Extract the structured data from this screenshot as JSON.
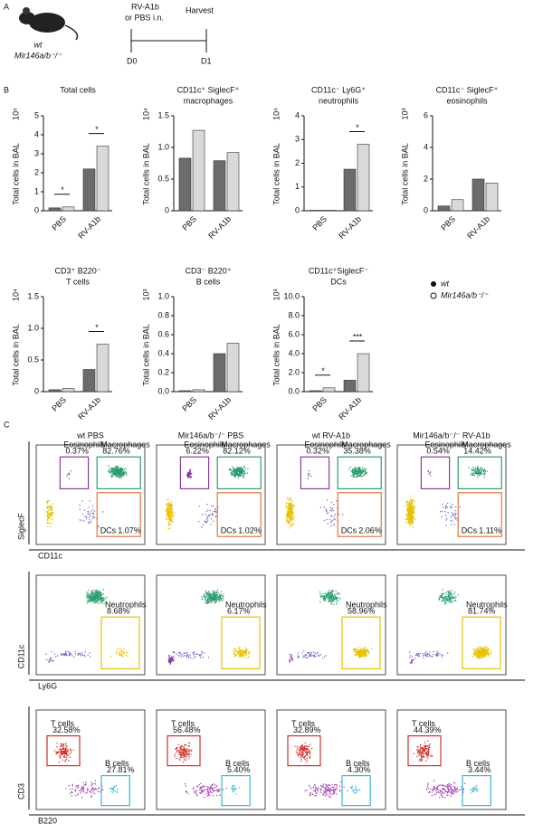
{
  "panel_labels": [
    "A",
    "B",
    "C"
  ],
  "design": {
    "strains": [
      "wt",
      "Mir146a/b⁻/⁻"
    ],
    "treatment": [
      "RV-A1b",
      "or PBS i.n."
    ],
    "harvest": "Harvest",
    "days": [
      "D0",
      "D1"
    ]
  },
  "chart_data": [
    {
      "type": "bar",
      "title": [
        "Total cells"
      ],
      "ylabel": "Total cells in BAL",
      "unit": "10⁵",
      "categories": [
        "PBS",
        "RV-A1b"
      ],
      "series": [
        {
          "name": "wt",
          "color": "#6b6b6b",
          "values": [
            0.15,
            2.2
          ]
        },
        {
          "name": "Mir146a/b⁻/⁻",
          "color": "#d9d9d9",
          "values": [
            0.2,
            3.4
          ]
        }
      ],
      "significance": [
        "*",
        "*"
      ],
      "ylim": [
        0,
        5
      ],
      "yticks": [
        0,
        1,
        2,
        3,
        4,
        5
      ]
    },
    {
      "type": "bar",
      "title": [
        "CD11c⁺ SiglecF⁺",
        "macrophages"
      ],
      "ylabel": "Total cells in BAL",
      "unit": "10⁴",
      "categories": [
        "PBS",
        "RV-A1b"
      ],
      "series": [
        {
          "name": "wt",
          "color": "#6b6b6b",
          "values": [
            0.83,
            0.79
          ]
        },
        {
          "name": "Mir146a/b⁻/⁻",
          "color": "#d9d9d9",
          "values": [
            1.27,
            0.92
          ]
        }
      ],
      "significance": [
        null,
        null
      ],
      "ylim": [
        0,
        1.5
      ],
      "yticks": [
        0,
        0.5,
        {
          "value": 1,
          "label": "1.0"
        },
        1.5
      ]
    },
    {
      "type": "bar",
      "title": [
        "CD11c⁻ Ly6G⁺",
        "neutrophils"
      ],
      "ylabel": "Total cells in BAL",
      "unit": "10⁵",
      "categories": [
        "PBS",
        "RV-A1b"
      ],
      "series": [
        {
          "name": "wt",
          "color": "#6b6b6b",
          "values": [
            0.02,
            1.75
          ]
        },
        {
          "name": "Mir146a/b⁻/⁻",
          "color": "#d9d9d9",
          "values": [
            0.02,
            2.8
          ]
        }
      ],
      "significance": [
        null,
        "*"
      ],
      "ylim": [
        0,
        4
      ],
      "yticks": [
        0,
        1,
        2,
        3,
        4
      ]
    },
    {
      "type": "bar",
      "title": [
        "CD11c⁻ SiglecF⁺",
        "eosinophils"
      ],
      "ylabel": "Total cells in BAL",
      "unit": "10³",
      "categories": [
        "PBS",
        "RV-A1b"
      ],
      "series": [
        {
          "name": "wt",
          "color": "#6b6b6b",
          "values": [
            0.3,
            2.0
          ]
        },
        {
          "name": "Mir146a/b⁻/⁻",
          "color": "#d9d9d9",
          "values": [
            0.7,
            1.75
          ]
        }
      ],
      "significance": [
        null,
        null
      ],
      "ylim": [
        0,
        6
      ],
      "yticks": [
        0,
        2,
        4,
        6
      ]
    },
    {
      "type": "bar",
      "title": [
        "CD3⁺ B220⁻",
        "T cells"
      ],
      "ylabel": "Total cells in BAL",
      "unit": "10⁴",
      "categories": [
        "PBS",
        "RV-A1b"
      ],
      "series": [
        {
          "name": "wt",
          "color": "#6b6b6b",
          "values": [
            0.03,
            0.35
          ]
        },
        {
          "name": "Mir146a/b⁻/⁻",
          "color": "#d9d9d9",
          "values": [
            0.05,
            0.75
          ]
        }
      ],
      "significance": [
        null,
        "*"
      ],
      "ylim": [
        0,
        1.5
      ],
      "yticks": [
        0,
        0.5,
        {
          "value": 1,
          "label": "1.0"
        },
        1.5
      ]
    },
    {
      "type": "bar",
      "title": [
        "CD3⁻ B220⁺",
        "B cells"
      ],
      "ylabel": "Total cells in BAL",
      "unit": "10³",
      "categories": [
        "PBS",
        "RV-A1b"
      ],
      "series": [
        {
          "name": "wt",
          "color": "#6b6b6b",
          "values": [
            0.01,
            0.4
          ]
        },
        {
          "name": "Mir146a/b⁻/⁻",
          "color": "#d9d9d9",
          "values": [
            0.02,
            0.51
          ]
        }
      ],
      "significance": [
        null,
        null
      ],
      "ylim": [
        0,
        1
      ],
      "yticks": [
        {
          "value": 0,
          "label": "0.0"
        },
        0.2,
        0.4,
        0.6,
        0.8,
        {
          "value": 1,
          "label": "1.0"
        }
      ]
    },
    {
      "type": "bar",
      "title": [
        "CD11c⁺SiglecF⁻",
        "DCs"
      ],
      "ylabel": "Total cells in BAL",
      "unit": "10³",
      "categories": [
        "PBS",
        "RV-A1b"
      ],
      "series": [
        {
          "name": "wt",
          "color": "#6b6b6b",
          "values": [
            0.1,
            1.2
          ]
        },
        {
          "name": "Mir146a/b⁻/⁻",
          "color": "#d9d9d9",
          "values": [
            0.4,
            4.0
          ]
        }
      ],
      "significance": [
        "*",
        "***"
      ],
      "ylim": [
        0,
        10
      ],
      "yticks": [
        {
          "value": 0,
          "label": "0.0"
        },
        {
          "value": 2,
          "label": "2.0"
        },
        {
          "value": 4,
          "label": "4.0"
        },
        {
          "value": 6,
          "label": "6.0"
        },
        {
          "value": 8,
          "label": "8.0"
        },
        {
          "value": 10,
          "label": "10.0"
        }
      ]
    }
  ],
  "flow": {
    "columns": [
      "wt PBS",
      "Mir146a/b⁻/⁻ PBS",
      "wt RV-A1b",
      "Mir146a/b⁻/⁻ RV-A1b"
    ],
    "rows": [
      {
        "x_label": "CD11c",
        "y_label": "SiglecF",
        "gates": [
          {
            "name": "Eosinophils",
            "percents": [
              "0.37%",
              "6.22%",
              "0.32%",
              "0.54%"
            ]
          },
          {
            "name": "Macrophages",
            "percents": [
              "82.76%",
              "82.12%",
              "35.38%",
              "14.42%"
            ]
          },
          {
            "name": "DCs",
            "percents": [
              "1.07%",
              "1.02%",
              "2.06%",
              "1.11%"
            ]
          }
        ]
      },
      {
        "x_label": "Ly6G",
        "y_label": "CD11c",
        "gates": [
          {
            "name": "Neutrophils",
            "percents": [
              "8.68%",
              "6.17%",
              "58.96%",
              "81.74%"
            ]
          }
        ]
      },
      {
        "x_label": "B220",
        "y_label": "CD3",
        "gates": [
          {
            "name": "T cells",
            "percents": [
              "32.58%",
              "56.48%",
              "32.89%",
              "44.39%"
            ]
          },
          {
            "name": "B cells",
            "percents": [
              "27.81%",
              "5.40%",
              "4.30%",
              "3.44%"
            ]
          }
        ]
      }
    ]
  }
}
